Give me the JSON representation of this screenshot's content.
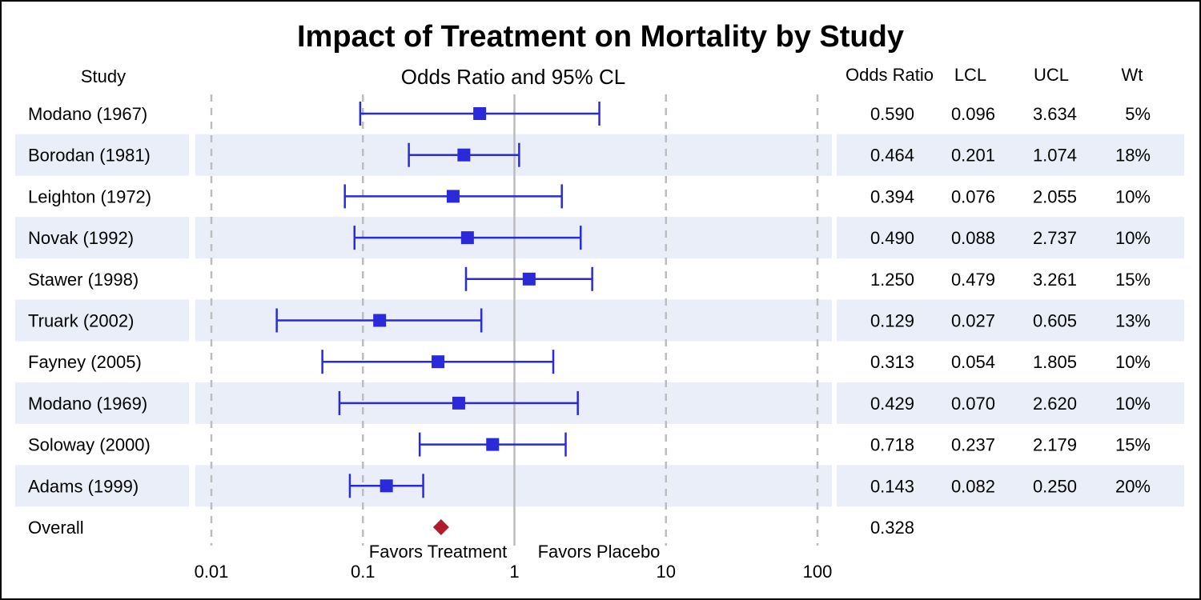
{
  "colors": {
    "marker": "#2a2adb",
    "overall_marker": "#b01c2e",
    "band": "#e9eef8",
    "refline": "#bbbbbb",
    "gridline": "#bdbdbd"
  },
  "chart_data": {
    "type": "scatter",
    "subtype": "forest-plot",
    "title": "Impact of Treatment on Mortality by Study",
    "plot_title": "Odds Ratio and 95% CL",
    "x_scale": "log",
    "xlim": [
      0.01,
      100
    ],
    "x_ticks": [
      0.01,
      0.1,
      1,
      10,
      100
    ],
    "x_tick_labels": [
      "0.01",
      "0.1",
      "1",
      "10",
      "100"
    ],
    "reference_line": 1,
    "grid": "vertical dashed at decades",
    "annotations": {
      "left": "Favors Treatment",
      "right": "Favors Placebo"
    },
    "columns": {
      "study": "Study",
      "or": "Odds Ratio",
      "lcl": "LCL",
      "ucl": "UCL",
      "wt": "Wt"
    },
    "studies": [
      {
        "name": "Modano  (1967)",
        "or": 0.59,
        "lcl": 0.096,
        "ucl": 3.634,
        "or_label": "0.590",
        "lcl_label": "0.096",
        "ucl_label": "3.634",
        "wt": "5%"
      },
      {
        "name": "Borodan (1981)",
        "or": 0.464,
        "lcl": 0.201,
        "ucl": 1.074,
        "or_label": "0.464",
        "lcl_label": "0.201",
        "ucl_label": "1.074",
        "wt": "18%"
      },
      {
        "name": "Leighton (1972)",
        "or": 0.394,
        "lcl": 0.076,
        "ucl": 2.055,
        "or_label": "0.394",
        "lcl_label": "0.076",
        "ucl_label": "2.055",
        "wt": "10%"
      },
      {
        "name": "Novak   (1992)",
        "or": 0.49,
        "lcl": 0.088,
        "ucl": 2.737,
        "or_label": "0.490",
        "lcl_label": "0.088",
        "ucl_label": "2.737",
        "wt": "10%"
      },
      {
        "name": "Stawer  (1998)",
        "or": 1.25,
        "lcl": 0.479,
        "ucl": 3.261,
        "or_label": "1.250",
        "lcl_label": "0.479",
        "ucl_label": "3.261",
        "wt": "15%"
      },
      {
        "name": "Truark   (2002)",
        "or": 0.129,
        "lcl": 0.027,
        "ucl": 0.605,
        "or_label": "0.129",
        "lcl_label": "0.027",
        "ucl_label": "0.605",
        "wt": "13%"
      },
      {
        "name": "Fayney   (2005)",
        "or": 0.313,
        "lcl": 0.054,
        "ucl": 1.805,
        "or_label": "0.313",
        "lcl_label": "0.054",
        "ucl_label": "1.805",
        "wt": "10%"
      },
      {
        "name": "Modano  (1969)",
        "or": 0.429,
        "lcl": 0.07,
        "ucl": 2.62,
        "or_label": "0.429",
        "lcl_label": "0.070",
        "ucl_label": "2.620",
        "wt": "10%"
      },
      {
        "name": "Soloway (2000)",
        "or": 0.718,
        "lcl": 0.237,
        "ucl": 2.179,
        "or_label": "0.718",
        "lcl_label": "0.237",
        "ucl_label": "2.179",
        "wt": "15%"
      },
      {
        "name": "Adams   (1999)",
        "or": 0.143,
        "lcl": 0.082,
        "ucl": 0.25,
        "or_label": "0.143",
        "lcl_label": "0.082",
        "ucl_label": "0.250",
        "wt": "20%"
      }
    ],
    "overall": {
      "name": "Overall",
      "or": 0.328,
      "or_label": "0.328"
    }
  }
}
